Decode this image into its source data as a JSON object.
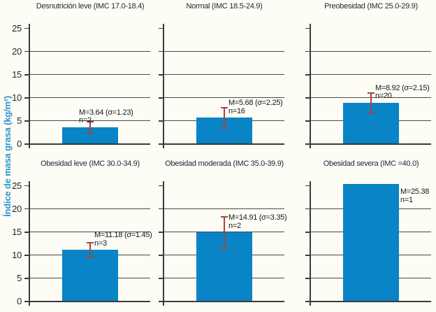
{
  "figure": {
    "ylabel": "Índice de masa grasa (kg/m²)"
  },
  "colors": {
    "bar": "#0984c6",
    "error_bar": "#a8423e",
    "axis": "#3a3a3a",
    "grid": "#4a4a4a",
    "ylabel_text": "#2b96d2",
    "text": "#1e2530",
    "background": "#fdfdf6"
  },
  "chart_data": {
    "type": "bar",
    "title": "",
    "ylabel": "Índice de masa grasa (kg/m²)",
    "xlabel": "",
    "ylim": [
      0,
      26
    ],
    "yticks": [
      0,
      5,
      10,
      15,
      20,
      25
    ],
    "gridlines": [
      5,
      10,
      15,
      20
    ],
    "grid": "horizontal",
    "legend_position": "none",
    "layout": "2 rows x 3 columns, shared y-axis, tick numbers only on left column",
    "error_bars": "mean ± sigma, dark red, capped",
    "panels": [
      {
        "title": "Desnutrición leve (IMC 17.0-18.4)",
        "mean": 3.64,
        "sigma": 1.23,
        "n": 2,
        "label_mean": "M=3.64 (σ=1.23)",
        "label_n": "n=2"
      },
      {
        "title": "Normal (IMC 18.5-24.9)",
        "mean": 5.68,
        "sigma": 2.25,
        "n": 16,
        "label_mean": "M=5.68 (σ=2.25)",
        "label_n": "n=16"
      },
      {
        "title": "Preobesidad (IMC 25.0-29.9)",
        "mean": 8.92,
        "sigma": 2.15,
        "n": 20,
        "label_mean": "M=8.92 (σ=2.15)",
        "label_n": "n=20"
      },
      {
        "title": "Obesidad leve (IMC 30.0-34.9)",
        "mean": 11.18,
        "sigma": 1.45,
        "n": 3,
        "label_mean": "M=11.18 (σ=1.45)",
        "label_n": "n=3"
      },
      {
        "title": "Obesidad moderada (IMC 35.0-39.9)",
        "mean": 14.91,
        "sigma": 3.35,
        "n": 2,
        "label_mean": "M=14.91 (σ=3.35)",
        "label_n": "n=2"
      },
      {
        "title": "Obesidad severa (IMC =40.0)",
        "mean": 25.38,
        "sigma": null,
        "n": 1,
        "label_mean": "M=25.38",
        "label_n": "n=1"
      }
    ]
  }
}
